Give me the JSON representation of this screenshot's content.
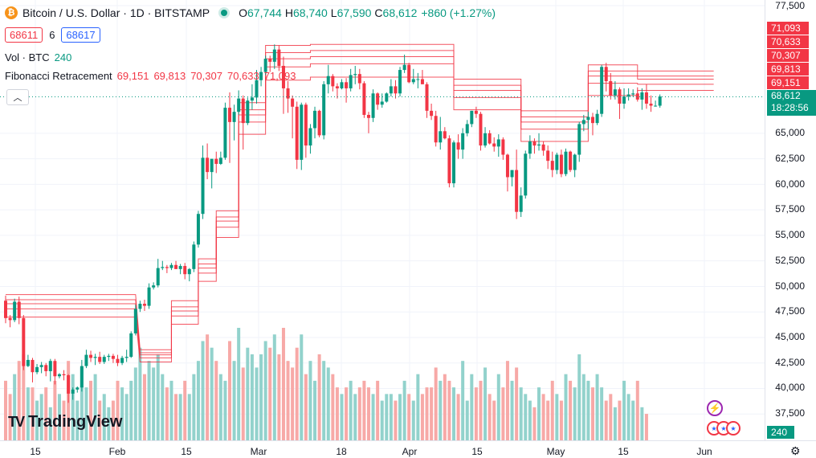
{
  "header": {
    "title": "Bitcoin / U.S. Dollar · 1D · BITSTAMP",
    "ohlc": [
      {
        "k": "O",
        "v": "67,744"
      },
      {
        "k": "H",
        "v": "68,740"
      },
      {
        "k": "L",
        "v": "67,590"
      },
      {
        "k": "C",
        "v": "68,612"
      }
    ],
    "change": "+860 (+1.27%)",
    "sell_price": "68611",
    "spread": "6",
    "buy_price": "68617"
  },
  "indicators": {
    "volume_label": "Vol · BTC",
    "volume_value": "240",
    "fib_label": "Fibonacci Retracement",
    "fib_values": [
      "69,151",
      "69,813",
      "70,307",
      "70,633",
      "71,093"
    ]
  },
  "axis": {
    "y_ticks": [
      "77,500",
      "65,000",
      "62,500",
      "60,000",
      "57,500",
      "55,000",
      "52,500",
      "50,000",
      "47,500",
      "45,000",
      "42,500",
      "40,000",
      "37,500"
    ],
    "x_ticks": [
      "15",
      "Feb",
      "15",
      "Mar",
      "18",
      "Apr",
      "15",
      "May",
      "15",
      "Jun"
    ]
  },
  "price_tag": {
    "price": "68,612",
    "countdown": "18:28:56"
  },
  "fib_tags": [
    "71,093",
    "70,633",
    "70,307",
    "69,813",
    "69,151"
  ],
  "volume_tag": "240",
  "brand": "TradingView",
  "colors": {
    "up": "#089981",
    "down": "#f23645",
    "up_vol": "#92d2cc",
    "down_vol": "#f7a9a7",
    "fib": "#f23645"
  },
  "chart_data": {
    "type": "candlestick",
    "ylim": [
      36500,
      77500
    ],
    "ohlc": [
      [
        48600,
        49100,
        46400,
        46900
      ],
      [
        46900,
        47200,
        46000,
        46700
      ],
      [
        46700,
        48800,
        46500,
        48500
      ],
      [
        48500,
        49000,
        46300,
        46900
      ],
      [
        46900,
        47200,
        41800,
        42200
      ],
      [
        42200,
        43300,
        42100,
        42800
      ],
      [
        42800,
        43000,
        40600,
        41600
      ],
      [
        41600,
        42400,
        41400,
        42100
      ],
      [
        42100,
        42600,
        41500,
        42300
      ],
      [
        42300,
        42500,
        41200,
        41700
      ],
      [
        41700,
        42900,
        40700,
        42700
      ],
      [
        42700,
        42900,
        40400,
        41200
      ],
      [
        41200,
        41500,
        41000,
        41400
      ],
      [
        41400,
        41800,
        40800,
        41300
      ],
      [
        41300,
        41400,
        38600,
        39500
      ],
      [
        39500,
        40100,
        38900,
        39900
      ],
      [
        39900,
        40200,
        39600,
        40100
      ],
      [
        40100,
        42800,
        39700,
        42200
      ],
      [
        42200,
        43800,
        42000,
        43300
      ],
      [
        43300,
        43700,
        42600,
        43000
      ],
      [
        43000,
        43400,
        42300,
        43100
      ],
      [
        43100,
        43600,
        42400,
        42600
      ],
      [
        42600,
        43300,
        42400,
        43100
      ],
      [
        43100,
        43400,
        42700,
        43200
      ],
      [
        43200,
        43400,
        42500,
        42900
      ],
      [
        42900,
        43300,
        42200,
        42500
      ],
      [
        42500,
        43200,
        42300,
        43000
      ],
      [
        43000,
        43800,
        42600,
        43100
      ],
      [
        43100,
        45600,
        43000,
        45400
      ],
      [
        45400,
        48200,
        45200,
        47800
      ],
      [
        47800,
        48600,
        47500,
        48300
      ],
      [
        48300,
        48700,
        47600,
        48100
      ],
      [
        48100,
        50300,
        47800,
        49900
      ],
      [
        49900,
        50400,
        49700,
        50100
      ],
      [
        50100,
        52700,
        49900,
        51800
      ],
      [
        51800,
        52500,
        51600,
        51900
      ],
      [
        51900,
        52100,
        51300,
        51800
      ],
      [
        51800,
        52300,
        51600,
        52100
      ],
      [
        52100,
        52500,
        51700,
        51700
      ],
      [
        51700,
        52200,
        51200,
        52000
      ],
      [
        52000,
        52300,
        50700,
        51200
      ],
      [
        51200,
        51800,
        50500,
        51700
      ],
      [
        51700,
        54400,
        51400,
        54100
      ],
      [
        54100,
        57400,
        53800,
        57100
      ],
      [
        57100,
        63800,
        56600,
        62600
      ],
      [
        62600,
        64000,
        60500,
        61200
      ],
      [
        61200,
        62400,
        59600,
        62500
      ],
      [
        62500,
        63200,
        61100,
        62000
      ],
      [
        62000,
        63200,
        61900,
        62600
      ],
      [
        62600,
        68000,
        62400,
        67500
      ],
      [
        67500,
        69000,
        62100,
        66100
      ],
      [
        66100,
        67800,
        64300,
        67100
      ],
      [
        67100,
        69200,
        66800,
        68400
      ],
      [
        68400,
        68700,
        63400,
        66000
      ],
      [
        66000,
        68500,
        65800,
        68200
      ],
      [
        68200,
        69800,
        67300,
        68500
      ],
      [
        68500,
        71200,
        67900,
        70200
      ],
      [
        70200,
        71500,
        69600,
        71000
      ],
      [
        71000,
        72600,
        70700,
        72300
      ],
      [
        72300,
        72600,
        71000,
        72000
      ],
      [
        72000,
        73700,
        71300,
        73200
      ],
      [
        73200,
        73600,
        71100,
        71600
      ],
      [
        71600,
        72500,
        66900,
        69400
      ],
      [
        69400,
        70100,
        67000,
        68400
      ],
      [
        68400,
        68700,
        64500,
        67600
      ],
      [
        67600,
        68100,
        61500,
        62400
      ],
      [
        62400,
        68000,
        61400,
        67800
      ],
      [
        67800,
        68000,
        62600,
        63800
      ],
      [
        63800,
        65900,
        63000,
        65500
      ],
      [
        65500,
        67600,
        64500,
        67200
      ],
      [
        67200,
        67300,
        64600,
        64800
      ],
      [
        64800,
        70100,
        64400,
        69800
      ],
      [
        69800,
        71700,
        68900,
        70600
      ],
      [
        70600,
        70800,
        69100,
        69600
      ],
      [
        69600,
        69900,
        68400,
        69400
      ],
      [
        69400,
        70300,
        69300,
        70000
      ],
      [
        70000,
        70400,
        68000,
        69400
      ],
      [
        69400,
        71300,
        69100,
        70700
      ],
      [
        70700,
        71600,
        69800,
        70800
      ],
      [
        70800,
        71300,
        69300,
        69900
      ],
      [
        69900,
        70100,
        66500,
        66800
      ],
      [
        66800,
        67100,
        65000,
        66500
      ],
      [
        66500,
        69300,
        66100,
        68900
      ],
      [
        68900,
        69000,
        67300,
        67800
      ],
      [
        67800,
        68900,
        67500,
        68100
      ],
      [
        68100,
        69000,
        68000,
        68900
      ],
      [
        68900,
        70300,
        68600,
        69600
      ],
      [
        69600,
        70200,
        68400,
        68900
      ],
      [
        68900,
        71500,
        68600,
        71200
      ],
      [
        71200,
        72700,
        70900,
        71700
      ],
      [
        71700,
        71900,
        69900,
        70000
      ],
      [
        70000,
        71300,
        69800,
        70300
      ],
      [
        70300,
        70900,
        69400,
        70300
      ],
      [
        70300,
        71200,
        69800,
        69800
      ],
      [
        69800,
        70000,
        66500,
        67200
      ],
      [
        67200,
        67900,
        66300,
        66700
      ],
      [
        66700,
        67200,
        63700,
        64100
      ],
      [
        64100,
        66600,
        63400,
        65200
      ],
      [
        65200,
        65600,
        64400,
        64500
      ],
      [
        64500,
        64800,
        59700,
        60100
      ],
      [
        60100,
        64300,
        59700,
        64100
      ],
      [
        64100,
        64900,
        62500,
        63400
      ],
      [
        63400,
        65500,
        62500,
        65000
      ],
      [
        65000,
        66300,
        64700,
        65900
      ],
      [
        65900,
        67200,
        65600,
        67200
      ],
      [
        67200,
        67600,
        66500,
        66900
      ],
      [
        66900,
        67100,
        63300,
        63800
      ],
      [
        63800,
        65600,
        63600,
        65000
      ],
      [
        65000,
        65300,
        63900,
        64000
      ],
      [
        64000,
        64600,
        63200,
        63700
      ],
      [
        63700,
        64900,
        62700,
        64400
      ],
      [
        64400,
        64600,
        62400,
        62900
      ],
      [
        62900,
        63000,
        59300,
        60700
      ],
      [
        60700,
        61300,
        59800,
        61400
      ],
      [
        61400,
        63400,
        56600,
        57300
      ],
      [
        57300,
        59700,
        56800,
        58900
      ],
      [
        58900,
        63300,
        58600,
        63000
      ],
      [
        63000,
        64800,
        62500,
        64200
      ],
      [
        64200,
        64500,
        63000,
        63800
      ],
      [
        63800,
        65000,
        63300,
        63900
      ],
      [
        63900,
        64200,
        62800,
        63300
      ],
      [
        63300,
        63800,
        61500,
        62300
      ],
      [
        62300,
        63200,
        60700,
        61400
      ],
      [
        61400,
        63100,
        61000,
        62900
      ],
      [
        62900,
        63400,
        60700,
        61000
      ],
      [
        61000,
        63500,
        60800,
        63200
      ],
      [
        63200,
        63300,
        61200,
        61400
      ],
      [
        61400,
        63000,
        60700,
        62900
      ],
      [
        62900,
        66100,
        62200,
        65900
      ],
      [
        65900,
        66800,
        65200,
        66300
      ],
      [
        66300,
        67100,
        65400,
        66600
      ],
      [
        66600,
        67000,
        64800,
        66000
      ],
      [
        66000,
        67300,
        65800,
        66900
      ],
      [
        66900,
        71700,
        66600,
        71500
      ],
      [
        71500,
        71900,
        69100,
        70100
      ],
      [
        70100,
        70900,
        68300,
        68700
      ],
      [
        68700,
        70100,
        68300,
        69300
      ],
      [
        69300,
        69500,
        66400,
        67900
      ],
      [
        67900,
        69400,
        67400,
        68600
      ],
      [
        68600,
        69400,
        68200,
        68800
      ],
      [
        68800,
        69300,
        68600,
        68900
      ],
      [
        68900,
        69500,
        68100,
        68300
      ],
      [
        68300,
        69400,
        67300,
        69000
      ],
      [
        69000,
        69800,
        67400,
        67900
      ],
      [
        67900,
        68700,
        67100,
        67700
      ],
      [
        67700,
        68200,
        67600,
        67700
      ],
      [
        67700,
        68800,
        67500,
        68600
      ]
    ],
    "volume": [
      9,
      7,
      10,
      12,
      13,
      8,
      8,
      6,
      7,
      8,
      5,
      9,
      7,
      6,
      12,
      10,
      6,
      11,
      8,
      9,
      10,
      6,
      7,
      5,
      6,
      9,
      8,
      7,
      9,
      11,
      14,
      10,
      12,
      11,
      13,
      10,
      8,
      9,
      7,
      7,
      9,
      7,
      10,
      12,
      15,
      16,
      14,
      12,
      10,
      9,
      15,
      12,
      17,
      11,
      14,
      13,
      11,
      13,
      15,
      14,
      16,
      13,
      17,
      12,
      11,
      14,
      16,
      10,
      12,
      9,
      13,
      12,
      11,
      10,
      8,
      7,
      8,
      9,
      7,
      8,
      9,
      8,
      7,
      9,
      6,
      7,
      7,
      6,
      7,
      9,
      7,
      6,
      10,
      7,
      8,
      8,
      11,
      9,
      10,
      9,
      8,
      7,
      12,
      6,
      10,
      8,
      9,
      11,
      7,
      6,
      10,
      8,
      12,
      9,
      11,
      8,
      7,
      6,
      5,
      8,
      7,
      6,
      9,
      7,
      6,
      10,
      9,
      8,
      13,
      10,
      9,
      8,
      10,
      8,
      6,
      7,
      5,
      6,
      9,
      7,
      6,
      9,
      5,
      4
    ],
    "fib_bands": [
      [
        0,
        29,
        [
          49200,
          48700,
          48300,
          47800,
          47000
        ]
      ],
      [
        30,
        37,
        [
          43800,
          43500,
          43300,
          43000,
          42600
        ]
      ],
      [
        37,
        43,
        [
          48600,
          48000,
          47600,
          47100,
          46300
        ]
      ],
      [
        43,
        47,
        [
          52700,
          52200,
          51800,
          51300,
          50500
        ]
      ],
      [
        47,
        52,
        [
          57400,
          56800,
          56400,
          55800,
          54800
        ]
      ],
      [
        52,
        58,
        [
          68000,
          67300,
          66800,
          66100,
          64900
        ]
      ],
      [
        58,
        68,
        [
          73600,
          72900,
          72300,
          71500,
          70200
        ]
      ],
      [
        68,
        100,
        [
          73700,
          73100,
          72500,
          71800,
          70500
        ]
      ],
      [
        100,
        115,
        [
          70300,
          69700,
          69200,
          68500,
          67300
        ]
      ],
      [
        115,
        130,
        [
          67200,
          66600,
          66100,
          65400,
          64200
        ]
      ],
      [
        130,
        141,
        [
          71700,
          71100,
          70600,
          69900,
          68700
        ]
      ],
      [
        141,
        158,
        [
          71100,
          70600,
          70300,
          69800,
          69200
        ]
      ]
    ]
  }
}
